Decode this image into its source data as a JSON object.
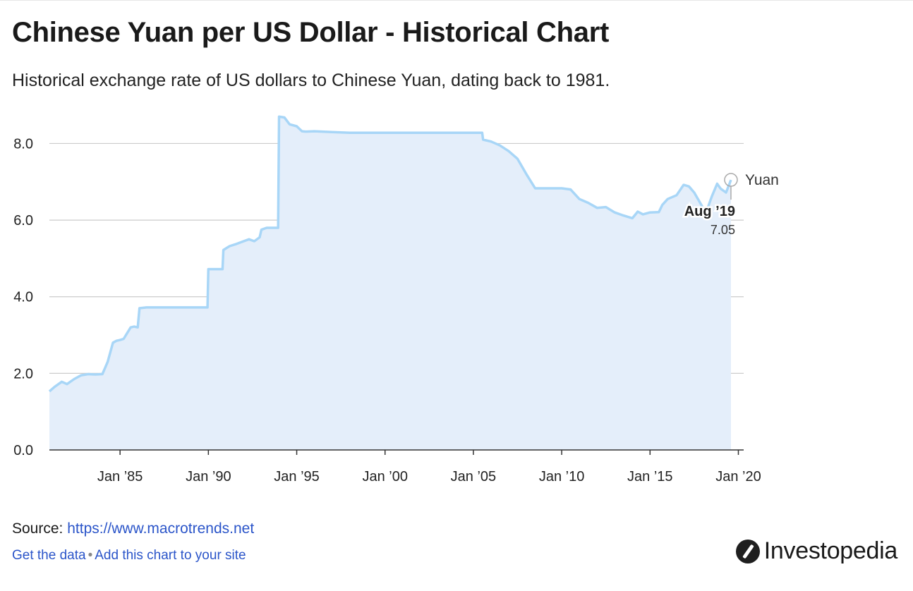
{
  "title": "Chinese Yuan per US Dollar - Historical Chart",
  "subtitle": "Historical exchange rate of US dollars to Chinese Yuan, dating back to 1981.",
  "source": {
    "label": "Source:",
    "link_text": "https://www.macrotrends.net"
  },
  "footer": {
    "get_data": "Get the data",
    "separator": "•",
    "add_chart": "Add this chart to your site"
  },
  "brand": {
    "name": "Investopedia",
    "icon": "investopedia-logo-icon"
  },
  "colors": {
    "line": "#a8d6f7",
    "area": "#e4eefa",
    "grid": "#cccccc",
    "axis": "#333333",
    "callout_marker": "#aaaaaa"
  },
  "chart_data": {
    "type": "area",
    "title": "Chinese Yuan per US Dollar - Historical Chart",
    "xlabel": "",
    "ylabel": "",
    "ylim": [
      0,
      8.8
    ],
    "xlim": [
      1981.0,
      2020.3
    ],
    "grid": true,
    "y_ticks": [
      {
        "value": 0,
        "label": "0.0"
      },
      {
        "value": 2,
        "label": "2.0"
      },
      {
        "value": 4,
        "label": "4.0"
      },
      {
        "value": 6,
        "label": "6.0"
      },
      {
        "value": 8,
        "label": "8.0"
      }
    ],
    "x_ticks": [
      {
        "value": 1985,
        "label": "Jan ’85"
      },
      {
        "value": 1990,
        "label": "Jan ’90"
      },
      {
        "value": 1995,
        "label": "Jan ’95"
      },
      {
        "value": 2000,
        "label": "Jan ’00"
      },
      {
        "value": 2005,
        "label": "Jan ’05"
      },
      {
        "value": 2010,
        "label": "Jan ’10"
      },
      {
        "value": 2015,
        "label": "Jan ’15"
      },
      {
        "value": 2020,
        "label": "Jan ’20"
      }
    ],
    "series": [
      {
        "name": "Yuan",
        "x": [
          1981.0,
          1981.3,
          1981.7,
          1982.0,
          1982.4,
          1982.8,
          1983.2,
          1983.6,
          1984.0,
          1984.3,
          1984.6,
          1984.8,
          1985.0,
          1985.2,
          1985.6,
          1985.8,
          1986.0,
          1986.1,
          1986.5,
          1986.55,
          1987.5,
          1988.5,
          1989.5,
          1989.95,
          1990.0,
          1990.8,
          1990.85,
          1991.2,
          1991.6,
          1992.0,
          1992.3,
          1992.6,
          1992.9,
          1993.0,
          1993.3,
          1993.7,
          1993.95,
          1994.0,
          1994.3,
          1994.6,
          1995.0,
          1995.3,
          1995.5,
          1996.0,
          1997.0,
          1998.0,
          1999.0,
          2000.0,
          2001.0,
          2002.0,
          2003.0,
          2004.0,
          2005.5,
          2005.55,
          2006.0,
          2006.5,
          2007.0,
          2007.5,
          2008.0,
          2008.5,
          2009.0,
          2010.0,
          2010.5,
          2011.0,
          2011.5,
          2012.0,
          2012.5,
          2013.0,
          2013.5,
          2014.0,
          2014.3,
          2014.6,
          2015.0,
          2015.5,
          2015.7,
          2016.0,
          2016.5,
          2016.9,
          2017.2,
          2017.5,
          2018.0,
          2018.25,
          2018.5,
          2018.8,
          2019.0,
          2019.3,
          2019.58
        ],
        "y": [
          1.53,
          1.65,
          1.78,
          1.72,
          1.85,
          1.95,
          1.98,
          1.97,
          1.98,
          2.3,
          2.8,
          2.85,
          2.87,
          2.9,
          3.2,
          3.22,
          3.2,
          3.7,
          3.72,
          3.72,
          3.72,
          3.72,
          3.72,
          3.72,
          4.72,
          4.72,
          5.22,
          5.32,
          5.38,
          5.45,
          5.5,
          5.45,
          5.55,
          5.75,
          5.8,
          5.8,
          5.8,
          8.7,
          8.68,
          8.5,
          8.45,
          8.32,
          8.31,
          8.32,
          8.3,
          8.28,
          8.28,
          8.28,
          8.28,
          8.28,
          8.28,
          8.28,
          8.28,
          8.1,
          8.05,
          7.95,
          7.8,
          7.6,
          7.2,
          6.83,
          6.83,
          6.83,
          6.8,
          6.55,
          6.45,
          6.32,
          6.34,
          6.2,
          6.12,
          6.05,
          6.22,
          6.15,
          6.2,
          6.21,
          6.4,
          6.55,
          6.65,
          6.92,
          6.88,
          6.72,
          6.32,
          6.3,
          6.62,
          6.95,
          6.82,
          6.72,
          7.05
        ]
      }
    ],
    "series_label": "Yuan",
    "annotations": [
      {
        "x": 2019.58,
        "y": 7.05,
        "date_label": "Aug ’19",
        "value_label": "7.05"
      }
    ]
  }
}
